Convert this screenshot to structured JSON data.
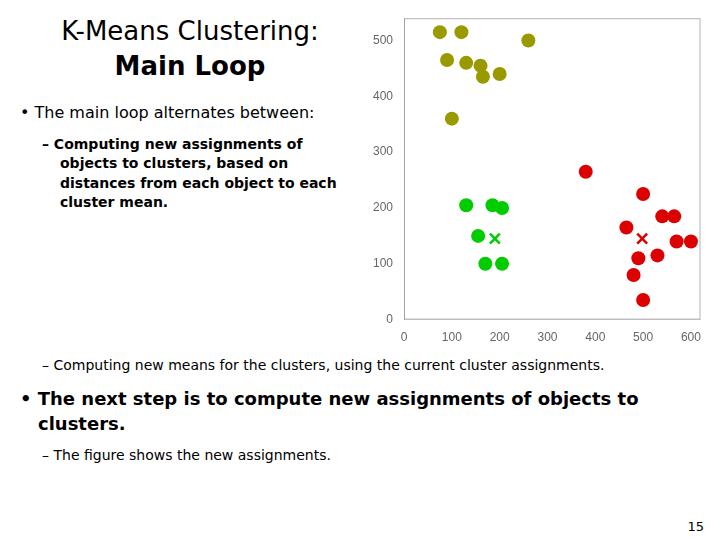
{
  "chart_data": {
    "type": "scatter",
    "title": [
      "K-Means Clustering:",
      "Main Loop"
    ],
    "annotations": [
      "• The main loop alternates between:",
      "– Computing new assignments of objects to clusters, based on distances from each object to each cluster mean.",
      "– Computing new means for the clusters, using the current cluster assignments.",
      "• The next step is to compute new assignments of objects to clusters.",
      "– The figure shows the new assignments."
    ],
    "footer": "15",
    "series": [
      {
        "color": "#999900",
        "marker": "circle",
        "values": [
          [
            75,
            515
          ],
          [
            120,
            515
          ],
          [
            90,
            465
          ],
          [
            130,
            460
          ],
          [
            160,
            455
          ],
          [
            165,
            435
          ],
          [
            200,
            440
          ],
          [
            260,
            500
          ],
          [
            100,
            360
          ]
        ]
      },
      {
        "color": "#00cc00",
        "marker": "circle",
        "values": [
          [
            155,
            150
          ],
          [
            130,
            205
          ],
          [
            185,
            205
          ],
          [
            205,
            200
          ],
          [
            170,
            100
          ],
          [
            205,
            100
          ]
        ]
      },
      {
        "color": "#dd0000",
        "marker": "circle",
        "values": [
          [
            380,
            265
          ],
          [
            465,
            165
          ],
          [
            500,
            225
          ],
          [
            540,
            185
          ],
          [
            565,
            185
          ],
          [
            570,
            140
          ],
          [
            600,
            140
          ],
          [
            490,
            110
          ],
          [
            530,
            115
          ],
          [
            480,
            80
          ],
          [
            500,
            35
          ]
        ]
      },
      {
        "color": "#00cc00",
        "marker": "x",
        "values": [
          [
            190,
            145
          ]
        ]
      },
      {
        "color": "#dd0000",
        "marker": "x",
        "values": [
          [
            498,
            145
          ]
        ]
      }
    ],
    "xlim": [
      0,
      620
    ],
    "xticks": [
      0,
      100,
      200,
      300,
      400,
      500,
      600
    ],
    "ylim": [
      0,
      540
    ],
    "yticks": [
      0,
      100,
      200,
      300,
      400,
      500
    ],
    "grid": false
  }
}
